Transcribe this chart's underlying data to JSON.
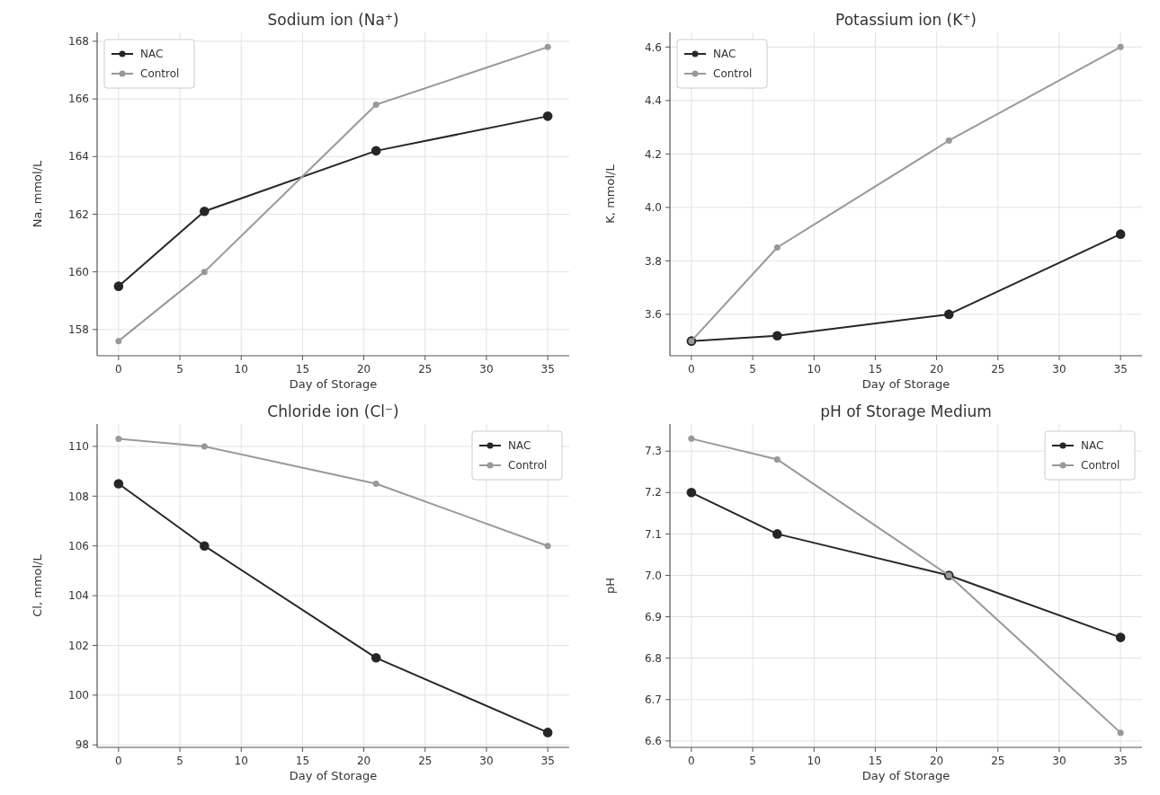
{
  "chart_data": [
    {
      "type": "line",
      "title": "Sodium ion (Na⁺)",
      "xlabel": "Day of Storage",
      "ylabel": "Na, mmol/L",
      "x": [
        0,
        7,
        21,
        35
      ],
      "xlim": [
        -1.75,
        36.75
      ],
      "xticks": [
        0,
        5,
        10,
        15,
        20,
        25,
        30,
        35
      ],
      "ylim": [
        157.09,
        168.31
      ],
      "yticks": [
        158,
        160,
        162,
        164,
        166,
        168
      ],
      "grid": true,
      "legend": "top left",
      "marker": "circle",
      "line_style": "solid",
      "series": [
        {
          "name": "NAC",
          "color": "#262626",
          "values": [
            159.5,
            162.1,
            164.2,
            165.4
          ]
        },
        {
          "name": "Control",
          "color": "#999999",
          "values": [
            157.6,
            160.0,
            165.8,
            167.8
          ]
        }
      ]
    },
    {
      "type": "line",
      "title": "Potassium ion (K⁺)",
      "xlabel": "Day of Storage",
      "ylabel": "K, mmol/L",
      "x": [
        0,
        7,
        21,
        35
      ],
      "xlim": [
        -1.75,
        36.75
      ],
      "xticks": [
        0,
        5,
        10,
        15,
        20,
        25,
        30,
        35
      ],
      "ylim": [
        3.445,
        4.655
      ],
      "yticks": [
        3.6,
        3.8,
        {
          "value": 4.0,
          "label": "4.0"
        },
        4.2,
        4.4,
        4.6
      ],
      "grid": true,
      "legend": "top left",
      "marker": "circle",
      "line_style": "solid",
      "series": [
        {
          "name": "NAC",
          "color": "#262626",
          "values": [
            3.5,
            3.52,
            3.6,
            3.9
          ]
        },
        {
          "name": "Control",
          "color": "#999999",
          "values": [
            3.5,
            3.85,
            4.25,
            4.6
          ]
        }
      ]
    },
    {
      "type": "line",
      "title": "Chloride ion (Cl⁻)",
      "xlabel": "Day of Storage",
      "ylabel": "Cl, mmol/L",
      "x": [
        0,
        7,
        21,
        35
      ],
      "xlim": [
        -1.75,
        36.75
      ],
      "xticks": [
        0,
        5,
        10,
        15,
        20,
        25,
        30,
        35
      ],
      "ylim": [
        97.9,
        110.9
      ],
      "yticks": [
        98,
        100,
        102,
        104,
        106,
        108,
        110
      ],
      "grid": true,
      "legend": "top right",
      "marker": "circle",
      "line_style": "solid",
      "series": [
        {
          "name": "NAC",
          "color": "#262626",
          "values": [
            108.5,
            106.0,
            101.5,
            98.5
          ]
        },
        {
          "name": "Control",
          "color": "#999999",
          "values": [
            110.3,
            110.0,
            108.5,
            106.0
          ]
        }
      ]
    },
    {
      "type": "line",
      "title": "pH of Storage Medium",
      "xlabel": "Day of Storage",
      "ylabel": "pH",
      "x": [
        0,
        7,
        21,
        35
      ],
      "xlim": [
        -1.75,
        36.75
      ],
      "xticks": [
        0,
        5,
        10,
        15,
        20,
        25,
        30,
        35
      ],
      "ylim": [
        6.5845,
        7.3655
      ],
      "yticks": [
        6.6,
        6.7,
        6.8,
        6.9,
        {
          "value": 7.0,
          "label": "7.0"
        },
        7.1,
        7.2,
        7.3
      ],
      "grid": true,
      "legend": "top right",
      "marker": "circle",
      "line_style": "solid",
      "series": [
        {
          "name": "NAC",
          "color": "#262626",
          "values": [
            7.2,
            7.1,
            7.0,
            6.85
          ]
        },
        {
          "name": "Control",
          "color": "#999999",
          "values": [
            7.33,
            7.28,
            7.0,
            6.62
          ]
        }
      ]
    }
  ]
}
